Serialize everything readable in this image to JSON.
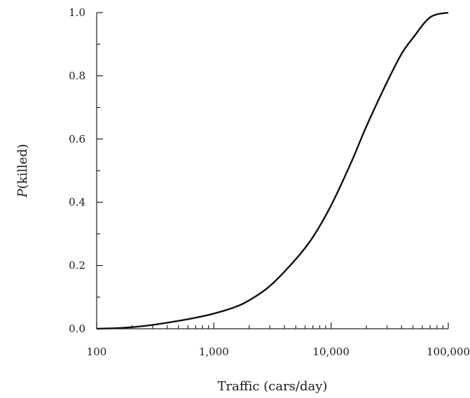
{
  "chart_data": {
    "type": "line",
    "xlabel": "Traffic (cars/day)",
    "ylabel_italic": "P",
    "ylabel_rest": "(killed)",
    "x_scale": "log",
    "xlim": [
      100,
      100000
    ],
    "ylim": [
      0.0,
      1.0
    ],
    "grid": false,
    "x_ticks": [
      {
        "value": 100,
        "label": "100"
      },
      {
        "value": 1000,
        "label": "1,000"
      },
      {
        "value": 10000,
        "label": "10,000"
      },
      {
        "value": 100000,
        "label": "100,000"
      }
    ],
    "y_ticks": [
      {
        "value": 0.0,
        "label": "0.0"
      },
      {
        "value": 0.2,
        "label": "0.2"
      },
      {
        "value": 0.4,
        "label": "0.4"
      },
      {
        "value": 0.6,
        "label": "0.6"
      },
      {
        "value": 0.8,
        "label": "0.8"
      },
      {
        "value": 1.0,
        "label": "1.0"
      }
    ],
    "series": [
      {
        "x": [
          100,
          150,
          200,
          300,
          500,
          700,
          1000,
          1500,
          2000,
          3000,
          5000,
          7000,
          10000,
          15000,
          20000,
          30000,
          40000,
          50000,
          70000,
          100000
        ],
        "y": [
          0.0,
          0.002,
          0.005,
          0.012,
          0.025,
          0.035,
          0.048,
          0.068,
          0.09,
          0.135,
          0.22,
          0.29,
          0.39,
          0.53,
          0.64,
          0.78,
          0.87,
          0.92,
          0.985,
          1.0
        ]
      }
    ]
  }
}
